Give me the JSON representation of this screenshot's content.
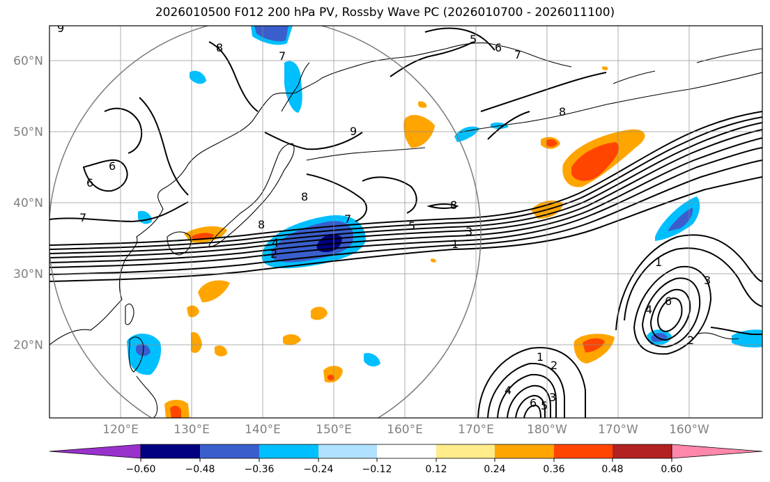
{
  "title": "2026010500 F012 200 hPa PV, Rossby Wave PC (2026010700 - 2026011100)",
  "lat_labels": [
    "60°N",
    "50°N",
    "40°N",
    "30°N",
    "20°N"
  ],
  "lon_labels": [
    "120°E",
    "130°E",
    "140°E",
    "150°E",
    "160°E",
    "170°E",
    "180°W",
    "170°W",
    "160°W"
  ],
  "colorbar": {
    "colors": [
      "#9932CC",
      "#000080",
      "#3A5FCD",
      "#00BFFF",
      "#B0E2FF",
      "#FFFFFF",
      "#FFEC8B",
      "#FFA500",
      "#FF4500",
      "#B22222",
      "#FF88AA"
    ],
    "ticks": [
      "−0.60",
      "−0.48",
      "−0.36",
      "−0.24",
      "−0.12",
      "0.12",
      "0.24",
      "0.36",
      "0.48",
      "0.60"
    ]
  },
  "contour_labels": [
    "9",
    "8",
    "5",
    "6",
    "7",
    "8",
    "9",
    "6",
    "6",
    "7",
    "8",
    "8",
    "8",
    "7",
    "5",
    "3",
    "1",
    "4",
    "2",
    "1",
    "3",
    "4",
    "6",
    "2",
    "1",
    "2",
    "3",
    "4",
    "5",
    "6",
    "7"
  ]
}
